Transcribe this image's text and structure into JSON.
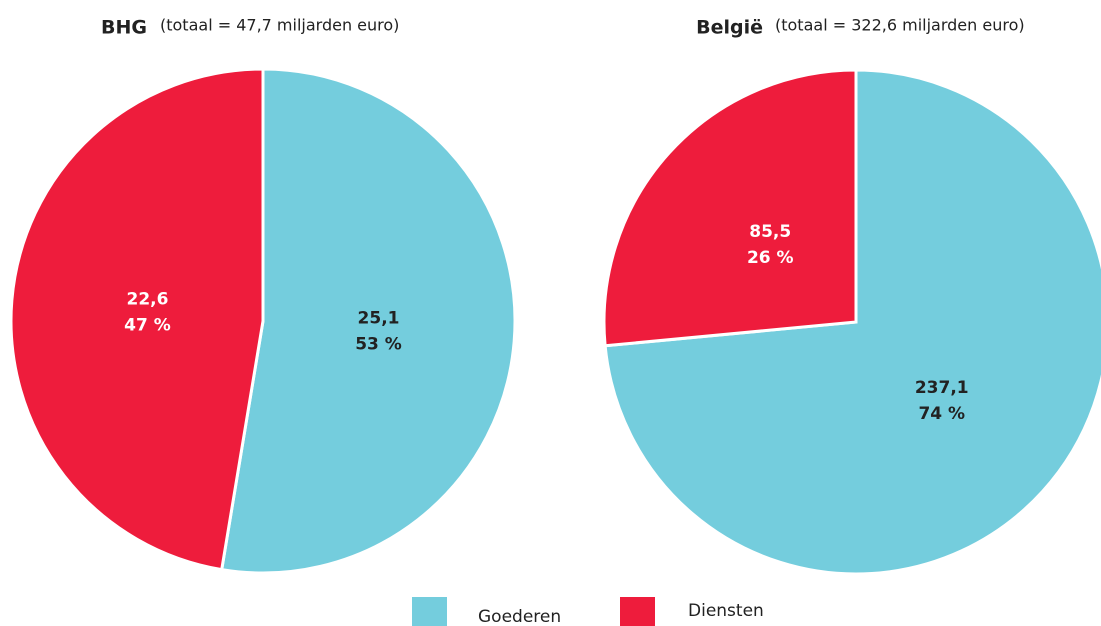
{
  "chart_data": [
    {
      "type": "pie",
      "title": "BHG",
      "subtitle": "(totaal = 47,7 miljarden euro)",
      "categories": [
        "Goederen",
        "Diensten"
      ],
      "values": [
        25.1,
        22.6
      ],
      "value_labels": [
        "25,1",
        "22,6"
      ],
      "percent_labels": [
        "53 %",
        "47 %"
      ],
      "colors": [
        "#74cddd",
        "#ee1c3c"
      ]
    },
    {
      "type": "pie",
      "title": "België",
      "subtitle": "(totaal = 322,6 miljarden euro)",
      "categories": [
        "Goederen",
        "Diensten"
      ],
      "values": [
        237.1,
        85.5
      ],
      "value_labels": [
        "237,1",
        "85,5"
      ],
      "percent_labels": [
        "74 %",
        "26 %"
      ],
      "colors": [
        "#74cddd",
        "#ee1c3c"
      ]
    }
  ]
}
